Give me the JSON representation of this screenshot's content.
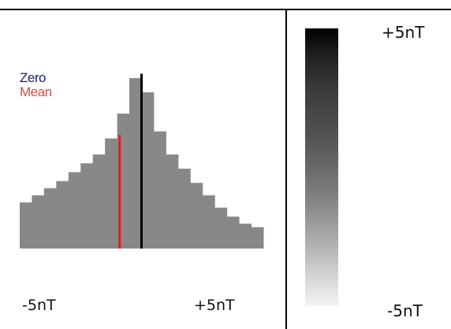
{
  "chart_data": {
    "type": "bar",
    "title": "",
    "xlabel": "",
    "ylabel": "",
    "x_tick_labels": [
      "-5nT",
      "+5nT"
    ],
    "xlim": [
      -5,
      5
    ],
    "ylim": [
      0,
      1
    ],
    "legend": {
      "placement": "top-left",
      "entries": [
        {
          "label": "Zero",
          "color": "#1a1a7a"
        },
        {
          "label": "Mean",
          "color": "#d94a4a"
        }
      ]
    },
    "markers": [
      {
        "name": "Zero",
        "x": 0,
        "color": "#000000"
      },
      {
        "name": "Mean",
        "x": -0.9,
        "color": "#e02020"
      }
    ],
    "histogram_color": "#888888",
    "x": [
      -4.75,
      -4.25,
      -3.75,
      -3.25,
      -2.75,
      -2.25,
      -1.75,
      -1.25,
      -0.75,
      -0.25,
      0.25,
      0.75,
      1.25,
      1.75,
      2.25,
      2.75,
      3.25,
      3.75,
      4.25,
      4.75
    ],
    "values": [
      0.26,
      0.3,
      0.34,
      0.38,
      0.43,
      0.48,
      0.53,
      0.62,
      0.76,
      0.96,
      0.88,
      0.66,
      0.53,
      0.45,
      0.37,
      0.3,
      0.23,
      0.18,
      0.14,
      0.12
    ],
    "colorbar": {
      "max_label": "+5nT",
      "min_label": "-5nT",
      "top_color": "#000000",
      "bottom_color": "#f4f4f4"
    }
  }
}
